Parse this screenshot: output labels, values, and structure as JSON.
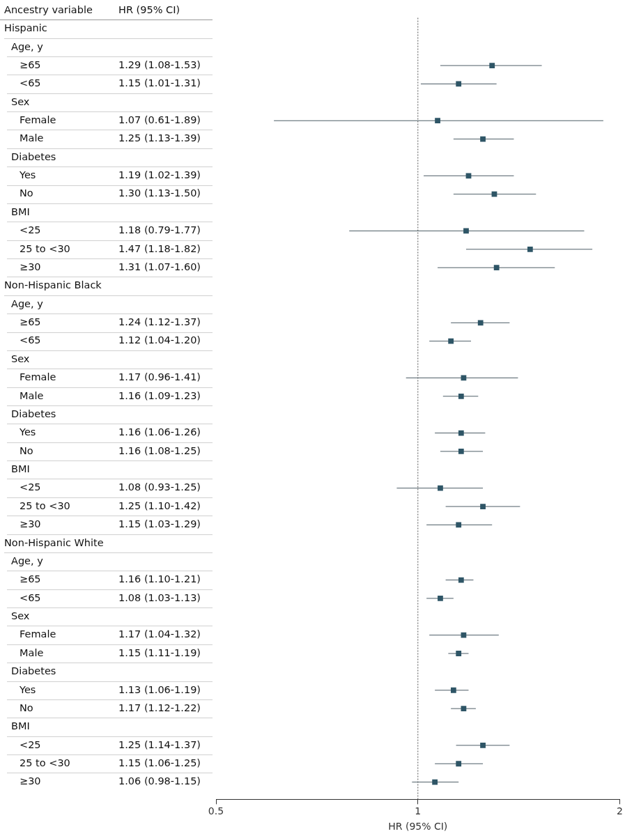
{
  "chart_data": {
    "type": "forest",
    "columns": [
      "Ancestry variable",
      "HR (95% CI)"
    ],
    "x_label": "HR (95% CI)",
    "log": "x",
    "xlim": [
      0.5,
      2
    ],
    "xticks": [
      0.5,
      1,
      2
    ],
    "reference_line": 1,
    "color": "#2e5566",
    "groups": [
      {
        "name": "Hispanic",
        "subgroups": [
          {
            "name": "Age, y",
            "rows": [
              {
                "label": "≥65",
                "value": 1.29,
                "low": 1.08,
                "high": 1.53,
                "value_label": "1.29 (1.08-1.53)"
              },
              {
                "label": "<65",
                "value": 1.15,
                "low": 1.01,
                "high": 1.31,
                "value_label": "1.15 (1.01-1.31)"
              }
            ]
          },
          {
            "name": "Sex",
            "rows": [
              {
                "label": "Female",
                "value": 1.07,
                "low": 0.61,
                "high": 1.89,
                "value_label": "1.07 (0.61-1.89)"
              },
              {
                "label": "Male",
                "value": 1.25,
                "low": 1.13,
                "high": 1.39,
                "value_label": "1.25 (1.13-1.39)"
              }
            ]
          },
          {
            "name": "Diabetes",
            "rows": [
              {
                "label": "Yes",
                "value": 1.19,
                "low": 1.02,
                "high": 1.39,
                "value_label": "1.19 (1.02-1.39)"
              },
              {
                "label": "No",
                "value": 1.3,
                "low": 1.13,
                "high": 1.5,
                "value_label": "1.30 (1.13-1.50)"
              }
            ]
          },
          {
            "name": "BMI",
            "rows": [
              {
                "label": "<25",
                "value": 1.18,
                "low": 0.79,
                "high": 1.77,
                "value_label": "1.18 (0.79-1.77)"
              },
              {
                "label": "25 to <30",
                "value": 1.47,
                "low": 1.18,
                "high": 1.82,
                "value_label": "1.47 (1.18-1.82)"
              },
              {
                "label": "≥30",
                "value": 1.31,
                "low": 1.07,
                "high": 1.6,
                "value_label": "1.31 (1.07-1.60)"
              }
            ]
          }
        ]
      },
      {
        "name": "Non-Hispanic Black",
        "subgroups": [
          {
            "name": "Age, y",
            "rows": [
              {
                "label": "≥65",
                "value": 1.24,
                "low": 1.12,
                "high": 1.37,
                "value_label": "1.24 (1.12-1.37)"
              },
              {
                "label": "<65",
                "value": 1.12,
                "low": 1.04,
                "high": 1.2,
                "value_label": "1.12 (1.04-1.20)"
              }
            ]
          },
          {
            "name": "Sex",
            "rows": [
              {
                "label": "Female",
                "value": 1.17,
                "low": 0.96,
                "high": 1.41,
                "value_label": "1.17 (0.96-1.41)"
              },
              {
                "label": "Male",
                "value": 1.16,
                "low": 1.09,
                "high": 1.23,
                "value_label": "1.16 (1.09-1.23)"
              }
            ]
          },
          {
            "name": "Diabetes",
            "rows": [
              {
                "label": "Yes",
                "value": 1.16,
                "low": 1.06,
                "high": 1.26,
                "value_label": "1.16 (1.06-1.26)"
              },
              {
                "label": "No",
                "value": 1.16,
                "low": 1.08,
                "high": 1.25,
                "value_label": "1.16 (1.08-1.25)"
              }
            ]
          },
          {
            "name": "BMI",
            "rows": [
              {
                "label": "<25",
                "value": 1.08,
                "low": 0.93,
                "high": 1.25,
                "value_label": "1.08 (0.93-1.25)"
              },
              {
                "label": "25 to <30",
                "value": 1.25,
                "low": 1.1,
                "high": 1.42,
                "value_label": "1.25 (1.10-1.42)"
              },
              {
                "label": "≥30",
                "value": 1.15,
                "low": 1.03,
                "high": 1.29,
                "value_label": "1.15 (1.03-1.29)"
              }
            ]
          }
        ]
      },
      {
        "name": "Non-Hispanic White",
        "subgroups": [
          {
            "name": "Age, y",
            "rows": [
              {
                "label": "≥65",
                "value": 1.16,
                "low": 1.1,
                "high": 1.21,
                "value_label": "1.16 (1.10-1.21)"
              },
              {
                "label": "<65",
                "value": 1.08,
                "low": 1.03,
                "high": 1.13,
                "value_label": "1.08 (1.03-1.13)"
              }
            ]
          },
          {
            "name": "Sex",
            "rows": [
              {
                "label": "Female",
                "value": 1.17,
                "low": 1.04,
                "high": 1.32,
                "value_label": "1.17 (1.04-1.32)"
              },
              {
                "label": "Male",
                "value": 1.15,
                "low": 1.11,
                "high": 1.19,
                "value_label": "1.15 (1.11-1.19)"
              }
            ]
          },
          {
            "name": "Diabetes",
            "rows": [
              {
                "label": "Yes",
                "value": 1.13,
                "low": 1.06,
                "high": 1.19,
                "value_label": "1.13 (1.06-1.19)"
              },
              {
                "label": "No",
                "value": 1.17,
                "low": 1.12,
                "high": 1.22,
                "value_label": "1.17 (1.12-1.22)"
              }
            ]
          },
          {
            "name": "BMI",
            "rows": [
              {
                "label": "<25",
                "value": 1.25,
                "low": 1.14,
                "high": 1.37,
                "value_label": "1.25 (1.14-1.37)"
              },
              {
                "label": "25 to <30",
                "value": 1.15,
                "low": 1.06,
                "high": 1.25,
                "value_label": "1.15 (1.06-1.25)"
              },
              {
                "label": "≥30",
                "value": 1.06,
                "low": 0.98,
                "high": 1.15,
                "value_label": "1.06 (0.98-1.15)"
              }
            ]
          }
        ]
      }
    ]
  }
}
